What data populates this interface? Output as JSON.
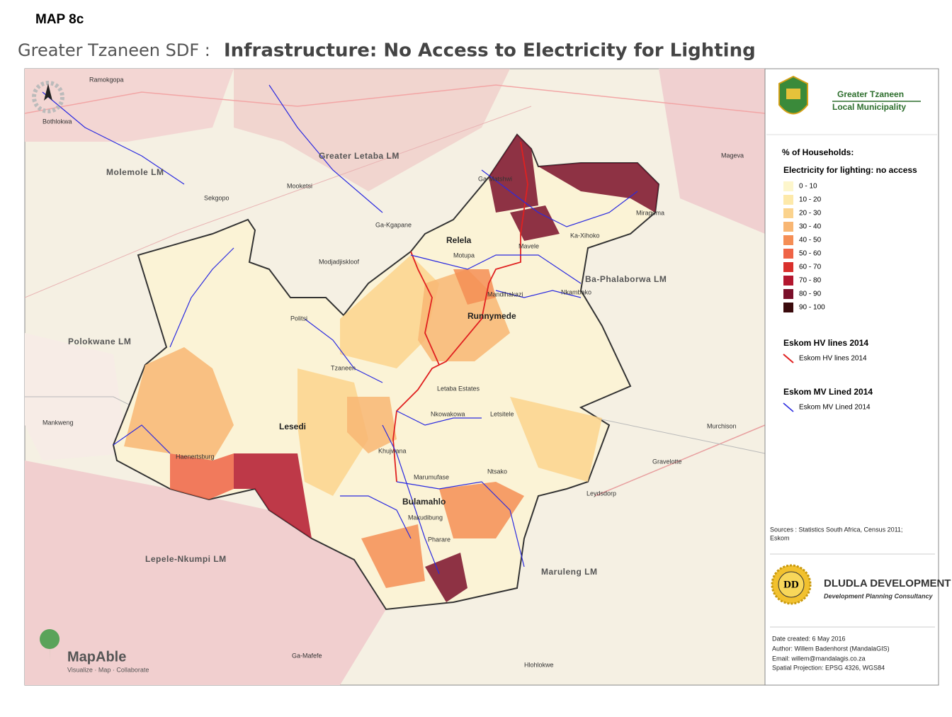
{
  "header": {
    "map_number": "MAP 8c",
    "subtitle": "Greater Tzaneen SDF :",
    "title": "Infrastructure: No Access to Electricity for Lighting"
  },
  "map": {
    "places": [
      "Ramokgopa",
      "Bothlokwa",
      "Greater Letaba LM",
      "Molemole LM",
      "Sekgopo",
      "Mooketsi",
      "Ga-Matshwi",
      "Mageva",
      "Miragoma",
      "Ga-Kgapane",
      "Ka-Xihoko",
      "Relela",
      "Motupa",
      "Mavele",
      "Modjadjiskloof",
      "Ba-Phalaborwa LM",
      "Mandlhakazi",
      "Nkambako",
      "Runnymede",
      "Politsi",
      "Polokwane LM",
      "Tzaneen",
      "Letaba Estates",
      "Nkowakowa",
      "Letsitele",
      "Lesedi",
      "Mankweng",
      "Murchison",
      "Khujwana",
      "Haenertsburg",
      "Gravelotte",
      "Ntsako",
      "Marumufase",
      "Leydsdorp",
      "Bulamahlo",
      "Makudibung",
      "Pharare",
      "Lepele-Nkumpi LM",
      "Maruleng LM",
      "Ga-Mafefe",
      "Hlohlokwe"
    ]
  },
  "logo": {
    "name_line1": "Greater Tzaneen",
    "name_line2": "Local Municipality"
  },
  "legend": {
    "heading": "% of Households:",
    "title": "Electricity for lighting: no access",
    "classes": [
      {
        "label": "0 - 10",
        "color": "#fdf6cc"
      },
      {
        "label": "10 - 20",
        "color": "#fde9aa"
      },
      {
        "label": "20 - 30",
        "color": "#fbd38d"
      },
      {
        "label": "30 - 40",
        "color": "#f8b673"
      },
      {
        "label": "40 - 50",
        "color": "#f58e55"
      },
      {
        "label": "50 - 60",
        "color": "#ef6446"
      },
      {
        "label": "60 - 70",
        "color": "#d9302c"
      },
      {
        "label": "70 - 80",
        "color": "#b3172f"
      },
      {
        "label": "80 - 90",
        "color": "#7a0f2a"
      },
      {
        "label": "90 - 100",
        "color": "#3a0a0c"
      }
    ],
    "hv": {
      "title": "Eskom HV lines 2014",
      "item": "Eskom HV lines 2014",
      "color": "#e02020"
    },
    "mv": {
      "title": "Eskom MV Lined 2014",
      "item": "Eskom MV Lined 2014",
      "color": "#2a2ae0"
    }
  },
  "sources": [
    "Sources : Statistics South Africa, Census 2011;",
    "Eskom"
  ],
  "consultant": {
    "initials": "DD",
    "name": "DLUDLA DEVELOPMENT",
    "tagline": "Development  Planning Consultancy"
  },
  "credits": [
    "Date created:   6 May 2016",
    "Author: Willem Badenhorst (MandalaGIS)",
    "Email: willem@mandalagis.co.za",
    "Spatial Projection: EPSG 4326, WGS84"
  ],
  "mapable": {
    "name": "MapAble",
    "tagline": "Visualize · Map · Collaborate"
  }
}
